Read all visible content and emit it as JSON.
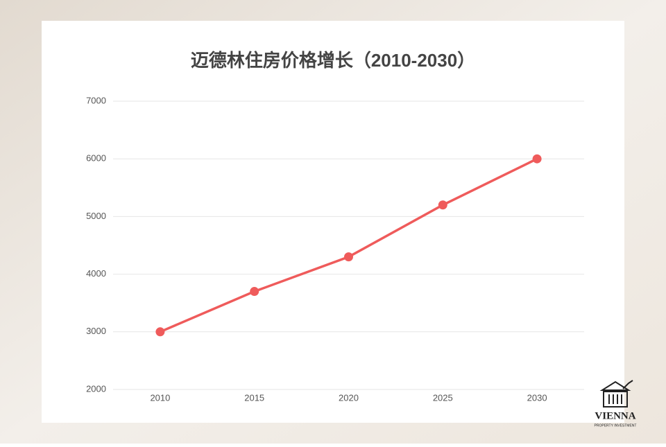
{
  "chart_data": {
    "type": "line",
    "title": "迈德林住房价格增长（2010-2030）",
    "categories": [
      "2010",
      "2015",
      "2020",
      "2025",
      "2030"
    ],
    "values": [
      3000,
      3700,
      4300,
      5200,
      6000
    ],
    "color": "#ef5b5b",
    "ylim": [
      2000,
      7000
    ],
    "yticks": [
      2000,
      3000,
      4000,
      5000,
      6000,
      7000
    ],
    "grid": true
  },
  "logo": {
    "name": "VIENNA",
    "tagline": "PROPERTY INVESTMENT"
  }
}
